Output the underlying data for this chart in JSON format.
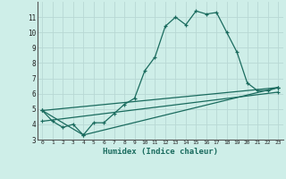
{
  "xlabel": "Humidex (Indice chaleur)",
  "background_color": "#ceeee8",
  "grid_color": "#b8d8d4",
  "line_color": "#1a6b5e",
  "xlim": [
    -0.5,
    23.5
  ],
  "ylim": [
    3,
    12
  ],
  "yticks": [
    3,
    4,
    5,
    6,
    7,
    8,
    9,
    10,
    11
  ],
  "xticks": [
    0,
    1,
    2,
    3,
    4,
    5,
    6,
    7,
    8,
    9,
    10,
    11,
    12,
    13,
    14,
    15,
    16,
    17,
    18,
    19,
    20,
    21,
    22,
    23
  ],
  "line1_x": [
    0,
    1,
    2,
    3,
    4,
    5,
    6,
    7,
    8,
    9,
    10,
    11,
    12,
    13,
    14,
    15,
    16,
    17,
    18,
    19,
    20,
    21,
    22,
    23
  ],
  "line1_y": [
    4.9,
    4.2,
    3.8,
    4.0,
    3.3,
    4.1,
    4.1,
    4.7,
    5.3,
    5.7,
    7.5,
    8.4,
    10.4,
    11.0,
    10.5,
    11.4,
    11.2,
    11.3,
    10.0,
    8.7,
    6.7,
    6.2,
    6.2,
    6.4
  ],
  "line2_x": [
    0,
    23
  ],
  "line2_y": [
    4.9,
    6.4
  ],
  "line3_x": [
    0,
    4,
    23
  ],
  "line3_y": [
    4.9,
    3.3,
    6.4
  ],
  "line4_x": [
    0,
    23
  ],
  "line4_y": [
    4.2,
    6.1
  ],
  "spine_color": "#555555"
}
